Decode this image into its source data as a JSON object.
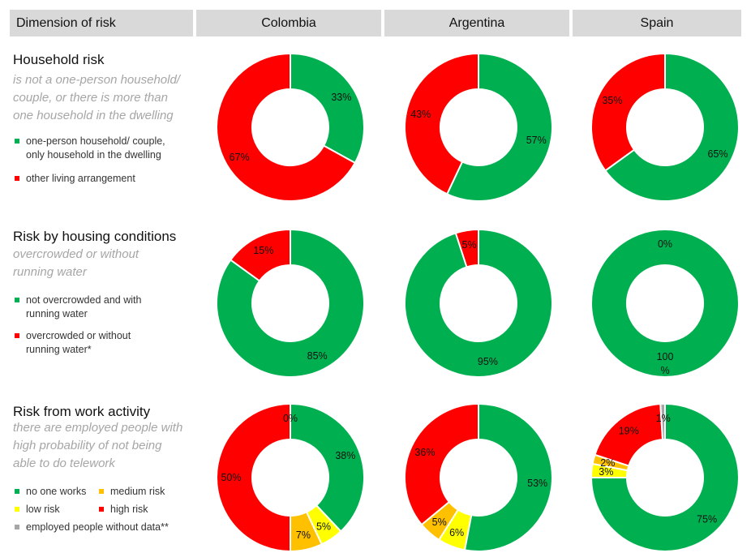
{
  "header": {
    "dimension_label": "Dimension of risk",
    "countries": [
      "Colombia",
      "Argentina",
      "Spain"
    ]
  },
  "sections": [
    {
      "title": "Household risk",
      "subtitle": [
        "is not a one-person household/",
        "couple, or there is more than",
        "one household in the dwelling"
      ],
      "legend": [
        {
          "label": [
            "one-person household/ couple,",
            "only household in the dwelling"
          ],
          "color": "#00b050"
        },
        {
          "label": [
            "other living arrangement"
          ],
          "color": "#ff0000"
        }
      ]
    },
    {
      "title": "Risk by housing conditions",
      "subtitle": [
        "overcrowded or without",
        "running water"
      ],
      "legend": [
        {
          "label": [
            "not overcrowded and with",
            "running water"
          ],
          "color": "#00b050"
        },
        {
          "label": [
            "overcrowded or without",
            "running water*"
          ],
          "color": "#ff0000"
        }
      ]
    },
    {
      "title": "Risk from work activity",
      "subtitle": [
        "there are employed people with",
        "high probability of not being",
        "able to do telework"
      ],
      "legend": [
        {
          "label": [
            "no one works"
          ],
          "color": "#00b050"
        },
        {
          "label": [
            "medium risk"
          ],
          "color": "#ffc000"
        },
        {
          "label": [
            "low risk"
          ],
          "color": "#ffff00"
        },
        {
          "label": [
            "high risk"
          ],
          "color": "#ff0000"
        },
        {
          "label": [
            "employed people without data**"
          ],
          "color": "#a6a6a6"
        }
      ]
    }
  ],
  "chart_data": [
    {
      "type": "pie",
      "donut": true,
      "row": "Household risk",
      "country": "Colombia",
      "slices": [
        {
          "name": "one-person household/ couple, only household in the dwelling",
          "value": 33,
          "label": "33%",
          "color": "#00b050"
        },
        {
          "name": "other living arrangement",
          "value": 67,
          "label": "67%",
          "color": "#ff0000"
        }
      ]
    },
    {
      "type": "pie",
      "donut": true,
      "row": "Household risk",
      "country": "Argentina",
      "slices": [
        {
          "name": "one-person household/ couple, only household in the dwelling",
          "value": 57,
          "label": "57%",
          "color": "#00b050"
        },
        {
          "name": "other living arrangement",
          "value": 43,
          "label": "43%",
          "color": "#ff0000"
        }
      ]
    },
    {
      "type": "pie",
      "donut": true,
      "row": "Household risk",
      "country": "Spain",
      "slices": [
        {
          "name": "one-person household/ couple, only household in the dwelling",
          "value": 65,
          "label": "65%",
          "color": "#00b050"
        },
        {
          "name": "other living arrangement",
          "value": 35,
          "label": "35%",
          "color": "#ff0000"
        }
      ]
    },
    {
      "type": "pie",
      "donut": true,
      "row": "Risk by housing conditions",
      "country": "Colombia",
      "slices": [
        {
          "name": "not overcrowded and with running water",
          "value": 85,
          "label": "85%",
          "color": "#00b050"
        },
        {
          "name": "overcrowded or without running water*",
          "value": 15,
          "label": "15%",
          "color": "#ff0000"
        }
      ]
    },
    {
      "type": "pie",
      "donut": true,
      "row": "Risk by housing conditions",
      "country": "Argentina",
      "slices": [
        {
          "name": "not overcrowded and with running water",
          "value": 95,
          "label": "95%",
          "color": "#00b050"
        },
        {
          "name": "overcrowded or without running water*",
          "value": 5,
          "label": "5%",
          "color": "#ff0000"
        }
      ]
    },
    {
      "type": "pie",
      "donut": true,
      "row": "Risk by housing conditions",
      "country": "Spain",
      "slices": [
        {
          "name": "not overcrowded and with running water",
          "value": 100,
          "label": "100 %",
          "color": "#00b050"
        },
        {
          "name": "overcrowded or without running water*",
          "value": 0,
          "label": "0%",
          "color": "#ff0000"
        }
      ]
    },
    {
      "type": "pie",
      "donut": true,
      "row": "Risk from work activity",
      "country": "Colombia",
      "slices": [
        {
          "name": "no one works",
          "value": 38,
          "label": "38%",
          "color": "#00b050"
        },
        {
          "name": "low risk",
          "value": 5,
          "label": "5%",
          "color": "#ffff00"
        },
        {
          "name": "medium risk",
          "value": 7,
          "label": "7%",
          "color": "#ffc000"
        },
        {
          "name": "high risk",
          "value": 50,
          "label": "50%",
          "color": "#ff0000"
        },
        {
          "name": "employed people without data**",
          "value": 0,
          "label": "0%",
          "color": "#a6a6a6"
        }
      ]
    },
    {
      "type": "pie",
      "donut": true,
      "row": "Risk from work activity",
      "country": "Argentina",
      "slices": [
        {
          "name": "no one works",
          "value": 53,
          "label": "53%",
          "color": "#00b050"
        },
        {
          "name": "low risk",
          "value": 6,
          "label": "6%",
          "color": "#ffff00"
        },
        {
          "name": "medium risk",
          "value": 5,
          "label": "5%",
          "color": "#ffc000"
        },
        {
          "name": "high risk",
          "value": 36,
          "label": "36%",
          "color": "#ff0000"
        }
      ]
    },
    {
      "type": "pie",
      "donut": true,
      "row": "Risk from work activity",
      "country": "Spain",
      "slices": [
        {
          "name": "no one works",
          "value": 75,
          "label": "75%",
          "color": "#00b050"
        },
        {
          "name": "low risk",
          "value": 3,
          "label": "3%",
          "color": "#ffff00"
        },
        {
          "name": "medium risk",
          "value": 2,
          "label": "2%",
          "color": "#ffc000"
        },
        {
          "name": "high risk",
          "value": 19,
          "label": "19%",
          "color": "#ff0000"
        },
        {
          "name": "employed people without data**",
          "value": 1,
          "label": "1%",
          "color": "#a6a6a6"
        }
      ]
    }
  ]
}
